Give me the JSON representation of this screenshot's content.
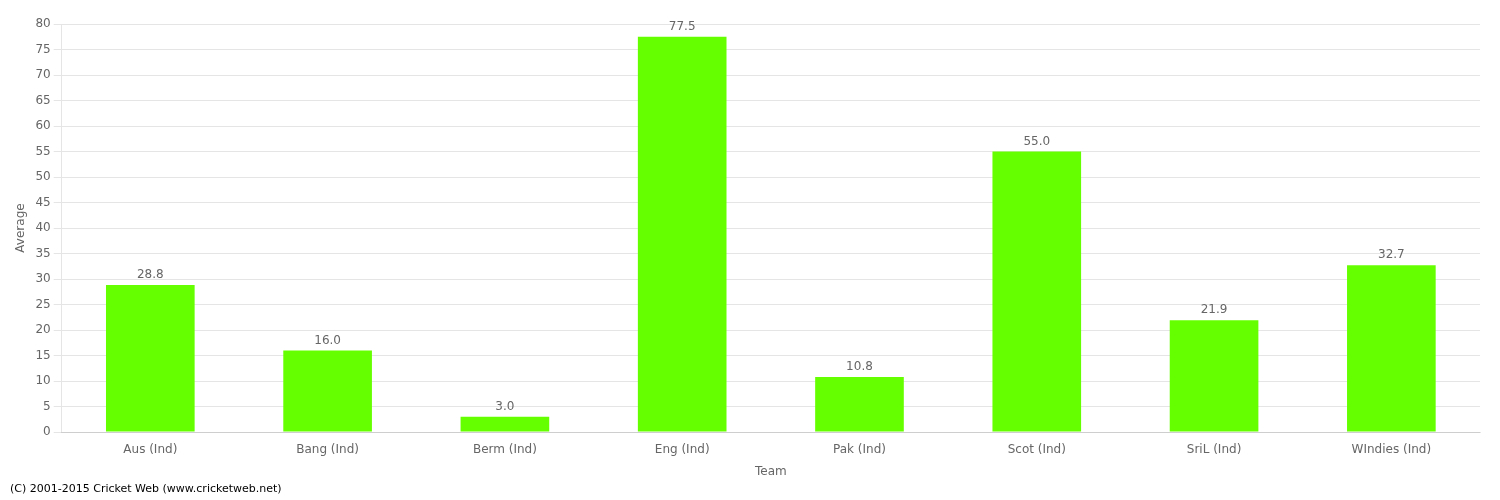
{
  "chart_data": {
    "type": "bar",
    "categories": [
      "Aus (Ind)",
      "Bang (Ind)",
      "Berm (Ind)",
      "Eng (Ind)",
      "Pak (Ind)",
      "Scot (Ind)",
      "SriL (Ind)",
      "WIndies (Ind)"
    ],
    "values": [
      28.8,
      16.0,
      3.0,
      77.5,
      10.8,
      55.0,
      21.9,
      32.7
    ],
    "value_labels": [
      "28.8",
      "16.0",
      "3.0",
      "77.5",
      "10.8",
      "55.0",
      "21.9",
      "32.7"
    ],
    "data_labels": true,
    "color": "#66ff00",
    "x_label": "Team",
    "y_label": "Average",
    "ylim": [
      0,
      80
    ],
    "yticks": [
      0,
      5,
      10,
      15,
      20,
      25,
      30,
      35,
      40,
      45,
      50,
      55,
      60,
      65,
      70,
      75,
      80
    ],
    "grid": true,
    "annotations": [
      "(C) 2001-2015 Cricket Web (www.cricketweb.net)"
    ]
  }
}
